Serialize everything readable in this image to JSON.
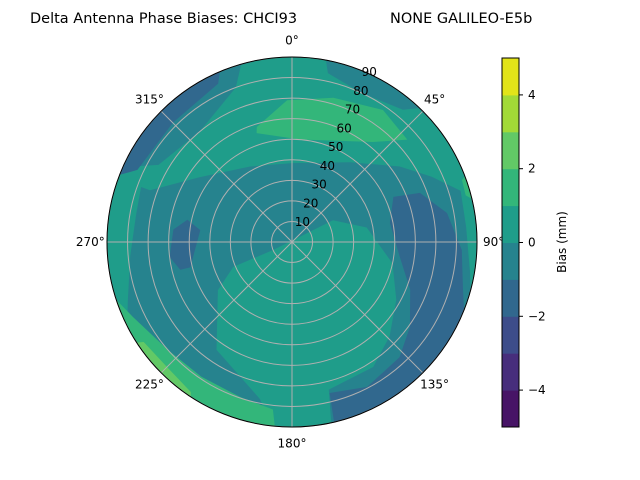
{
  "chart_data": {
    "type": "polar-contour",
    "title_left": "Delta Antenna Phase Biases: CHCI93",
    "title_right": "NONE GALILEO-E5b",
    "angle_axis": {
      "direction": "clockwise",
      "zero": "north",
      "tick_labels": [
        {
          "az": 0,
          "label": "0°"
        },
        {
          "az": 45,
          "label": "45°"
        },
        {
          "az": 90,
          "label": "90°"
        },
        {
          "az": 135,
          "label": "135°"
        },
        {
          "az": 180,
          "label": "180°"
        },
        {
          "az": 225,
          "label": "225°"
        },
        {
          "az": 270,
          "label": "270°"
        },
        {
          "az": 315,
          "label": "315°"
        }
      ]
    },
    "radial_axis": {
      "range": [
        0,
        90
      ],
      "ticks": [
        10,
        20,
        30,
        40,
        50,
        60,
        70,
        80,
        90
      ],
      "tick_labels": [
        "10",
        "20",
        "30",
        "40",
        "50",
        "60",
        "70",
        "80",
        "90"
      ]
    },
    "colorbar": {
      "label": "Bias (mm)",
      "range": [
        -5,
        5
      ],
      "ticks": [
        4,
        2,
        0,
        -2,
        -4
      ],
      "tick_labels": [
        "4",
        "2",
        "0",
        "−2",
        "−4"
      ],
      "levels": [
        {
          "min": -5,
          "max": -4,
          "color": "#471466"
        },
        {
          "min": -4,
          "max": -3,
          "color": "#472e7c"
        },
        {
          "min": -3,
          "max": -2,
          "color": "#3d4d8a"
        },
        {
          "min": -2,
          "max": -1,
          "color": "#31688e"
        },
        {
          "min": -1,
          "max": 0,
          "color": "#26838e"
        },
        {
          "min": 0,
          "max": 1,
          "color": "#1f9d8a"
        },
        {
          "min": 1,
          "max": 2,
          "color": "#33b67a"
        },
        {
          "min": 2,
          "max": 3,
          "color": "#62c966"
        },
        {
          "min": 3,
          "max": 4,
          "color": "#a2da37"
        },
        {
          "min": 4,
          "max": 5,
          "color": "#e2e419"
        }
      ]
    },
    "base_level": {
      "min": -1,
      "max": 0
    },
    "regions": [
      {
        "level_min": 0,
        "level_max": 1,
        "name": "north-outer",
        "points": [
          [
            290,
            73.5
          ],
          [
            305,
            55
          ],
          [
            331,
            42
          ],
          [
            0,
            38.4
          ],
          [
            36,
            48
          ],
          [
            55,
            64
          ],
          [
            65,
            75
          ],
          [
            73,
            85.6
          ],
          [
            79,
            90
          ],
          [
            60,
            90
          ],
          [
            30,
            90
          ],
          [
            0,
            90
          ],
          [
            330,
            90
          ],
          [
            300,
            90
          ],
          [
            290,
            90
          ]
        ]
      },
      {
        "level_min": 0,
        "level_max": 1,
        "name": "west-ring",
        "points": [
          [
            300,
            90
          ],
          [
            296,
            80
          ],
          [
            280,
            77
          ],
          [
            265,
            79
          ],
          [
            250,
            85
          ],
          [
            240,
            90
          ],
          [
            260,
            90
          ],
          [
            280,
            90
          ]
        ]
      },
      {
        "level_min": 0,
        "level_max": 1,
        "name": "east-edge",
        "points": [
          [
            70,
            90
          ],
          [
            72,
            86
          ],
          [
            85,
            85
          ],
          [
            100,
            88
          ],
          [
            110,
            90
          ],
          [
            90,
            90
          ]
        ]
      },
      {
        "level_min": -1,
        "level_max": 0,
        "name": "north-edge-patch",
        "points": [
          [
            10,
            90
          ],
          [
            12,
            84
          ],
          [
            25,
            80
          ],
          [
            40,
            84
          ],
          [
            45,
            90
          ],
          [
            28,
            90
          ]
        ]
      },
      {
        "level_min": -1,
        "level_max": 0,
        "name": "northwest-patch",
        "points": [
          [
            345,
            90
          ],
          [
            340,
            80
          ],
          [
            320,
            70
          ],
          [
            300,
            75
          ],
          [
            293,
            90
          ],
          [
            320,
            90
          ]
        ]
      },
      {
        "level_min": -2,
        "level_max": -1,
        "name": "northwest-edge",
        "points": [
          [
            290,
            90
          ],
          [
            295,
            83
          ],
          [
            315,
            82
          ],
          [
            335,
            85
          ],
          [
            338,
            90
          ],
          [
            315,
            90
          ]
        ]
      },
      {
        "level_min": 1,
        "level_max": 2,
        "name": "north-blob",
        "points": [
          [
            343,
            58.5
          ],
          [
            358,
            69
          ],
          [
            16,
            73
          ],
          [
            34.6,
            78
          ],
          [
            48.4,
            75
          ],
          [
            39,
            62.6
          ],
          [
            4.5,
            50
          ],
          [
            342,
            55.7
          ]
        ]
      },
      {
        "level_min": 1,
        "level_max": 2,
        "name": "east-edge-sliver",
        "points": [
          [
            68,
            90
          ],
          [
            70,
            88
          ],
          [
            75,
            87.5
          ],
          [
            78,
            90
          ]
        ]
      },
      {
        "level_min": -2,
        "level_max": -1,
        "name": "east-blob",
        "points": [
          [
            66,
            54
          ],
          [
            69,
            66.7
          ],
          [
            79.4,
            76.7
          ],
          [
            92.7,
            82.7
          ],
          [
            105.7,
            86.4
          ],
          [
            115,
            90
          ],
          [
            130,
            90
          ],
          [
            145,
            90
          ],
          [
            160,
            90
          ],
          [
            167,
            90
          ],
          [
            166,
            75.7
          ],
          [
            152.6,
            79.4
          ],
          [
            137,
            76.7
          ],
          [
            125.8,
            70.7
          ],
          [
            112,
            62
          ],
          [
            98,
            53
          ],
          [
            79,
            48.5
          ]
        ]
      },
      {
        "level_min": -2,
        "level_max": -1,
        "name": "west-blob",
        "points": [
          [
            282,
            52
          ],
          [
            277.4,
            45
          ],
          [
            256,
            51
          ],
          [
            256,
            56
          ],
          [
            263,
            60
          ],
          [
            276,
            58
          ]
        ]
      },
      {
        "level_min": 0,
        "level_max": 1,
        "name": "south-blob",
        "points": [
          [
            247,
            10
          ],
          [
            62,
            22.6
          ],
          [
            79,
            37
          ],
          [
            102,
            50
          ],
          [
            119,
            58
          ],
          [
            134,
            66
          ],
          [
            147,
            72.5
          ],
          [
            166,
            74
          ],
          [
            168,
            90
          ],
          [
            177,
            90
          ],
          [
            186,
            90
          ],
          [
            191.5,
            78
          ],
          [
            215,
            64
          ],
          [
            237,
            43
          ],
          [
            247,
            31
          ]
        ]
      },
      {
        "level_min": 1,
        "level_max": 2,
        "name": "southwest-band",
        "points": [
          [
            255,
            90
          ],
          [
            244.7,
            85.5
          ],
          [
            229,
            80
          ],
          [
            214,
            79
          ],
          [
            198.5,
            79.5
          ],
          [
            186.5,
            82
          ],
          [
            185,
            90
          ],
          [
            200,
            90
          ],
          [
            220,
            90
          ],
          [
            240,
            90
          ]
        ]
      },
      {
        "level_min": 2,
        "level_max": 3,
        "name": "southwest-sliver",
        "points": [
          [
            238,
            90
          ],
          [
            236,
            87
          ],
          [
            225,
            86
          ],
          [
            214,
            88
          ],
          [
            212,
            90
          ],
          [
            225,
            90
          ]
        ]
      }
    ]
  }
}
